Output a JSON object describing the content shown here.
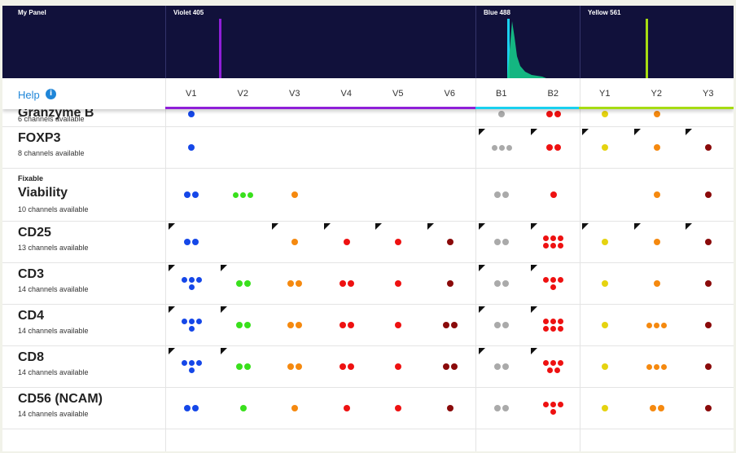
{
  "panel_title": "My Panel",
  "lasers": [
    {
      "name": "Violet 405",
      "color": "#8f1fd8"
    },
    {
      "name": "Blue 488",
      "color": "#1ad0ef"
    },
    {
      "name": "Yellow 561",
      "color": "#a6dc12"
    }
  ],
  "help": {
    "label": "Help",
    "icon": "info-icon"
  },
  "channels": [
    "V1",
    "V2",
    "V3",
    "V4",
    "V5",
    "V6",
    "B1",
    "B2",
    "Y1",
    "Y2",
    "Y3"
  ],
  "channel_group_colors": [
    "#8f1fd8",
    "#8f1fd8",
    "#8f1fd8",
    "#8f1fd8",
    "#8f1fd8",
    "#8f1fd8",
    "#1ad0ef",
    "#1ad0ef",
    "#a6dc12",
    "#a6dc12",
    "#a6dc12"
  ],
  "color_legend": {
    "blue": "#1547e8",
    "green": "#39e01c",
    "orange": "#f5890f",
    "red": "#ee1111",
    "darkred": "#8a0a0a",
    "gray": "#aaaaaa",
    "yellow": "#e5d310",
    "corner": "#111111"
  },
  "markers": [
    {
      "prefix": "",
      "name": "Granzyme B",
      "available": "6 channels available",
      "cells": [
        [
          "blue",
          1,
          0
        ],
        null,
        null,
        null,
        null,
        null,
        [
          "gray",
          1,
          0
        ],
        [
          "red",
          2,
          0
        ],
        [
          "yellow",
          1,
          0
        ],
        [
          "orange",
          1,
          0
        ],
        null
      ]
    },
    {
      "prefix": "",
      "name": "FOXP3",
      "available": "8 channels available",
      "cells": [
        [
          "blue",
          1,
          0
        ],
        null,
        null,
        null,
        null,
        null,
        [
          "gray",
          3,
          1
        ],
        [
          "red",
          2,
          1
        ],
        [
          "yellow",
          1,
          1
        ],
        [
          "orange",
          1,
          1
        ],
        [
          "darkred",
          1,
          1
        ]
      ]
    },
    {
      "prefix": "Fixable",
      "name": "Viability",
      "available": "10 channels available",
      "cells": [
        [
          "blue",
          2,
          0
        ],
        [
          "green",
          3,
          0
        ],
        [
          "orange",
          1,
          0
        ],
        null,
        null,
        null,
        [
          "gray",
          2,
          0
        ],
        [
          "red",
          1,
          0
        ],
        null,
        [
          "orange",
          1,
          0
        ],
        [
          "darkred",
          1,
          0
        ]
      ]
    },
    {
      "prefix": "",
      "name": "CD25",
      "available": "13 channels available",
      "cells": [
        [
          "blue",
          2,
          1
        ],
        null,
        [
          "orange",
          1,
          1
        ],
        [
          "red",
          1,
          1
        ],
        [
          "red",
          1,
          1
        ],
        [
          "darkred",
          1,
          1
        ],
        [
          "gray",
          2,
          1
        ],
        [
          "red",
          6,
          1
        ],
        [
          "yellow",
          1,
          1
        ],
        [
          "orange",
          1,
          1
        ],
        [
          "darkred",
          1,
          1
        ]
      ]
    },
    {
      "prefix": "",
      "name": "CD3",
      "available": "14 channels available",
      "cells": [
        [
          "blue",
          4,
          1
        ],
        [
          "green",
          2,
          1
        ],
        [
          "orange",
          2,
          0
        ],
        [
          "red",
          2,
          0
        ],
        [
          "red",
          1,
          0
        ],
        [
          "darkred",
          1,
          0
        ],
        [
          "gray",
          2,
          1
        ],
        [
          "red",
          4,
          1
        ],
        [
          "yellow",
          1,
          0
        ],
        [
          "orange",
          1,
          0
        ],
        [
          "darkred",
          1,
          0
        ]
      ]
    },
    {
      "prefix": "",
      "name": "CD4",
      "available": "14 channels available",
      "cells": [
        [
          "blue",
          4,
          1
        ],
        [
          "green",
          2,
          1
        ],
        [
          "orange",
          2,
          0
        ],
        [
          "red",
          2,
          0
        ],
        [
          "red",
          1,
          0
        ],
        [
          "darkred",
          2,
          0
        ],
        [
          "gray",
          2,
          1
        ],
        [
          "red",
          6,
          1
        ],
        [
          "yellow",
          1,
          0
        ],
        [
          "orange",
          3,
          0
        ],
        [
          "darkred",
          1,
          0
        ]
      ]
    },
    {
      "prefix": "",
      "name": "CD8",
      "available": "14 channels available",
      "cells": [
        [
          "blue",
          4,
          1
        ],
        [
          "green",
          2,
          1
        ],
        [
          "orange",
          2,
          0
        ],
        [
          "red",
          2,
          0
        ],
        [
          "red",
          1,
          0
        ],
        [
          "darkred",
          2,
          0
        ],
        [
          "gray",
          2,
          1
        ],
        [
          "red",
          5,
          1
        ],
        [
          "yellow",
          1,
          0
        ],
        [
          "orange",
          3,
          0
        ],
        [
          "darkred",
          1,
          0
        ]
      ]
    },
    {
      "prefix": "",
      "name": "CD56 (NCAM)",
      "available": "14 channels available",
      "cells": [
        [
          "blue",
          2,
          0
        ],
        [
          "green",
          1,
          0
        ],
        [
          "orange",
          1,
          0
        ],
        [
          "red",
          1,
          0
        ],
        [
          "red",
          1,
          0
        ],
        [
          "darkred",
          1,
          0
        ],
        [
          "gray",
          2,
          0
        ],
        [
          "red",
          4,
          0
        ],
        [
          "yellow",
          1,
          0
        ],
        [
          "orange",
          2,
          0
        ],
        [
          "darkred",
          1,
          0
        ]
      ]
    }
  ]
}
